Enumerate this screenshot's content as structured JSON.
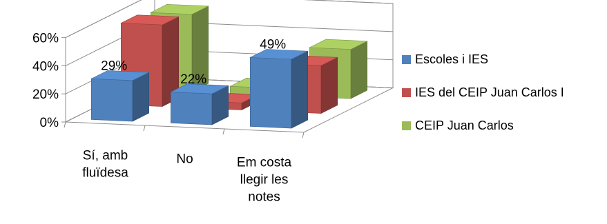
{
  "chart_data": {
    "type": "bar",
    "categories": [
      "Sí, amb fluïdesa",
      "No",
      "Em costa llegir les notes"
    ],
    "category_lines": [
      [
        "Sí, amb",
        "fluïdesa"
      ],
      [
        "No"
      ],
      [
        "Em costa",
        "llegir les",
        "notes"
      ]
    ],
    "yticks": [
      "0%",
      "20%",
      "40%",
      "60%"
    ],
    "ylim": [
      0,
      60
    ],
    "grid": true,
    "legend_position": "right",
    "series": [
      {
        "name": "Escoles i IES",
        "color": "#4F81BD",
        "values": [
          29,
          22,
          49
        ],
        "labels": [
          "29%",
          "22%",
          "49%"
        ]
      },
      {
        "name": "IES del CEIP Juan Carlos I",
        "color": "#C0504D",
        "values": [
          58,
          5,
          34
        ],
        "labels": []
      },
      {
        "name": "CEIP Juan Carlos",
        "color": "#9BBB59",
        "values": [
          55,
          5,
          35
        ],
        "labels": []
      }
    ]
  }
}
